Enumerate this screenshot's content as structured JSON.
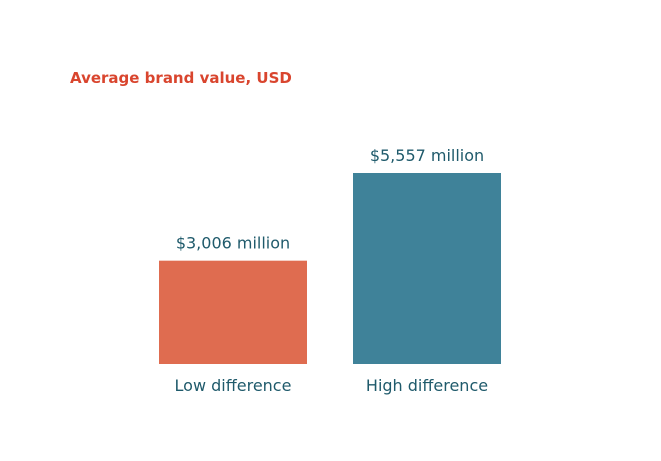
{
  "chart_data": {
    "type": "bar",
    "title": "Average brand value, USD",
    "categories": [
      "Low difference",
      "High difference"
    ],
    "values": [
      3006,
      5557
    ],
    "value_labels": [
      "$3,006 million",
      "$5,557 million"
    ],
    "unit": "million USD",
    "xlabel": "",
    "ylabel": "",
    "ylim": [
      0,
      5557
    ],
    "grid": false,
    "legend": "none",
    "colors": {
      "bars": [
        "#df6c50",
        "#3f8299"
      ],
      "title": "#d9452e",
      "labels": "#1f5a6b"
    }
  }
}
